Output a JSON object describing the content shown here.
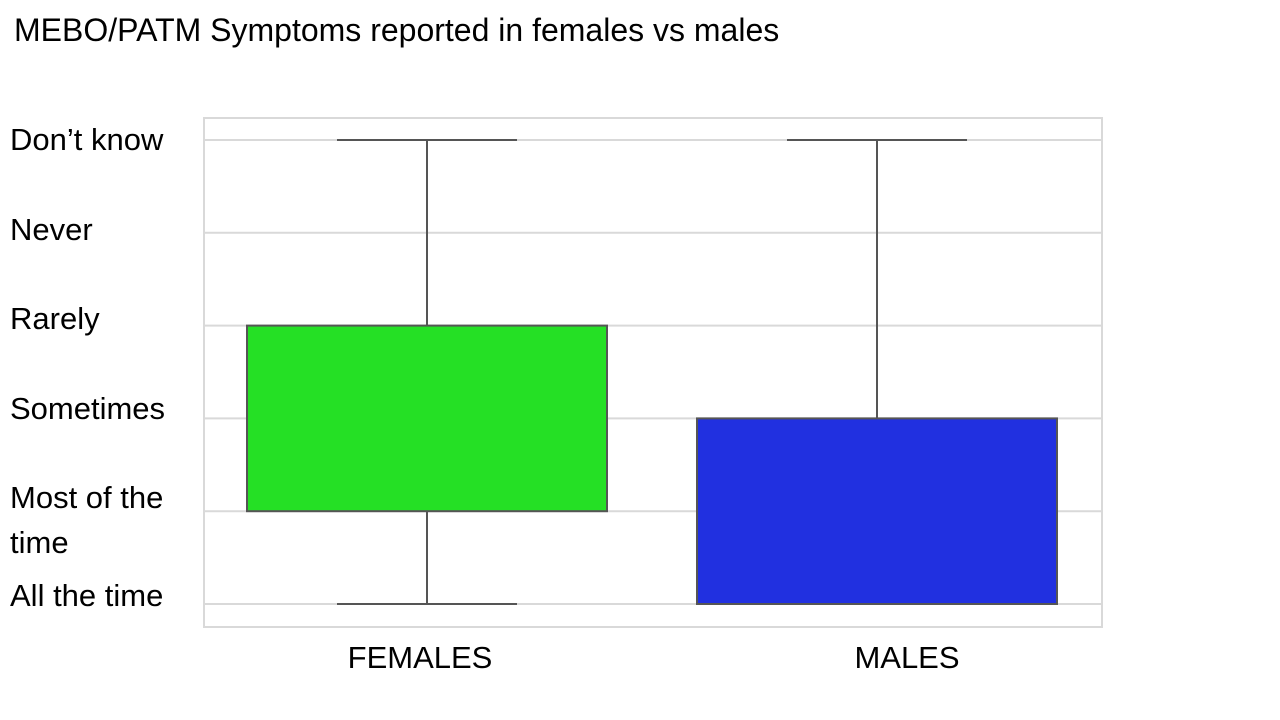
{
  "chart_data": {
    "type": "boxplot",
    "title": "MEBO/PATM Symptoms reported in females vs males",
    "y_categories": [
      "Don’t know",
      "Never",
      "Rarely",
      "Sometimes",
      "Most of the time",
      "All the time"
    ],
    "y_order_note": "",
    "categories": [
      "FEMALES",
      "MALES"
    ],
    "series": [
      {
        "category": "FEMALES",
        "color": "#25e025",
        "whisker_low": "All the time",
        "q1": "Most of the time",
        "q3": "Rarely",
        "whisker_high": "Don’t know"
      },
      {
        "category": "MALES",
        "color": "#2130e0",
        "whisker_low": "All the time",
        "q1": "All the time",
        "q3": "Sometimes",
        "whisker_high": "Don’t know"
      }
    ],
    "grid": true
  }
}
